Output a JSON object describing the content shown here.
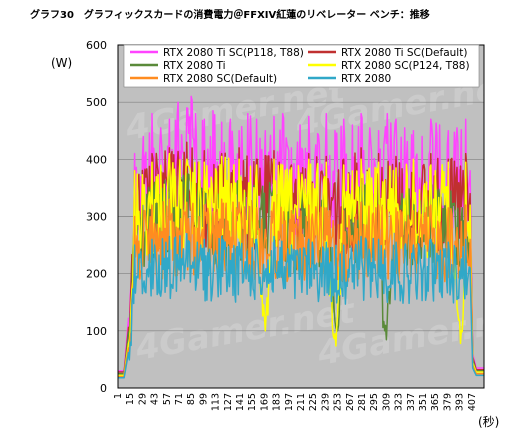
{
  "chart_data": {
    "type": "line",
    "title": "グラフ30　グラフィックスカードの消費電力＠FFXIV紅蓮のリベレーター ベンチ：推移",
    "ylabel": "(W)",
    "xlabel": "(秒)",
    "ylim": [
      0,
      600
    ],
    "yticks": [
      0,
      100,
      200,
      300,
      400,
      500,
      600
    ],
    "xlim": [
      1,
      421
    ],
    "xticks": [
      1,
      15,
      29,
      43,
      57,
      71,
      85,
      99,
      113,
      127,
      141,
      155,
      169,
      183,
      197,
      211,
      225,
      239,
      253,
      267,
      281,
      295,
      309,
      323,
      337,
      351,
      365,
      379,
      393,
      407
    ],
    "grid": true,
    "plot_background": "#c0c0c0",
    "legend_position": "top",
    "watermark": "4Gamer.net",
    "series": [
      {
        "name": "RTX 2080 Ti SC(P118, T88)",
        "color": "#ff44ff",
        "x": [
          1,
          8,
          10,
          15,
          20,
          30,
          40,
          50,
          60,
          70,
          80,
          85,
          90,
          100,
          110,
          120,
          130,
          140,
          150,
          160,
          170,
          180,
          190,
          200,
          210,
          220,
          230,
          240,
          250,
          260,
          270,
          280,
          290,
          300,
          310,
          320,
          330,
          340,
          350,
          360,
          370,
          380,
          390,
          400,
          405,
          408,
          412,
          421
        ],
        "y": [
          30,
          30,
          65,
          160,
          410,
          440,
          480,
          455,
          470,
          500,
          490,
          510,
          480,
          470,
          485,
          465,
          470,
          450,
          480,
          470,
          450,
          475,
          480,
          420,
          460,
          475,
          445,
          480,
          450,
          470,
          460,
          480,
          455,
          450,
          480,
          470,
          455,
          450,
          440,
          470,
          460,
          450,
          455,
          470,
          380,
          60,
          35,
          35
        ]
      },
      {
        "name": "RTX 2080 Ti SC(Default)",
        "color": "#c03030",
        "x": [
          1,
          8,
          10,
          15,
          20,
          40,
          60,
          80,
          100,
          120,
          140,
          160,
          180,
          200,
          220,
          240,
          260,
          280,
          300,
          320,
          340,
          360,
          380,
          400,
          405,
          408,
          412,
          421
        ],
        "y": [
          28,
          28,
          55,
          140,
          380,
          410,
          420,
          430,
          415,
          410,
          420,
          400,
          415,
          390,
          410,
          405,
          400,
          420,
          410,
          405,
          395,
          410,
          400,
          410,
          340,
          55,
          32,
          32
        ]
      },
      {
        "name": "RTX 2080 Ti",
        "color": "#5a8a3a",
        "x": [
          1,
          8,
          10,
          15,
          20,
          40,
          60,
          80,
          100,
          120,
          140,
          160,
          180,
          200,
          220,
          240,
          253,
          260,
          280,
          300,
          307,
          320,
          340,
          360,
          380,
          400,
          405,
          408,
          412,
          421
        ],
        "y": [
          25,
          25,
          50,
          130,
          340,
          360,
          370,
          375,
          365,
          360,
          370,
          355,
          365,
          345,
          360,
          355,
          100,
          350,
          360,
          355,
          100,
          360,
          350,
          360,
          355,
          360,
          300,
          50,
          30,
          30
        ]
      },
      {
        "name": "RTX 2080 SC(P124, T88)",
        "color": "#ffff00",
        "x": [
          1,
          8,
          10,
          15,
          20,
          40,
          60,
          80,
          100,
          120,
          140,
          160,
          170,
          180,
          200,
          220,
          240,
          250,
          260,
          280,
          300,
          320,
          340,
          360,
          380,
          395,
          400,
          405,
          408,
          412,
          421
        ],
        "y": [
          22,
          22,
          45,
          100,
          380,
          395,
          410,
          400,
          395,
          405,
          400,
          390,
          100,
          400,
          385,
          400,
          395,
          95,
          390,
          400,
          395,
          385,
          400,
          390,
          395,
          100,
          395,
          320,
          45,
          28,
          28
        ]
      },
      {
        "name": "RTX 2080 SC(Default)",
        "color": "#ff8c20",
        "x": [
          1,
          8,
          10,
          15,
          20,
          40,
          60,
          80,
          100,
          120,
          140,
          160,
          180,
          200,
          220,
          240,
          260,
          280,
          300,
          320,
          340,
          360,
          380,
          400,
          405,
          408,
          412,
          421
        ],
        "y": [
          20,
          20,
          40,
          90,
          300,
          320,
          330,
          325,
          320,
          330,
          325,
          315,
          325,
          310,
          320,
          315,
          310,
          325,
          320,
          315,
          310,
          320,
          315,
          320,
          260,
          40,
          25,
          25
        ]
      },
      {
        "name": "RTX 2080",
        "color": "#30a8c8",
        "x": [
          1,
          8,
          10,
          15,
          20,
          40,
          60,
          80,
          100,
          120,
          140,
          160,
          180,
          200,
          220,
          240,
          260,
          280,
          300,
          320,
          340,
          360,
          380,
          400,
          405,
          408,
          412,
          421
        ],
        "y": [
          18,
          18,
          35,
          80,
          250,
          260,
          265,
          270,
          260,
          265,
          255,
          260,
          265,
          250,
          260,
          255,
          250,
          265,
          260,
          255,
          250,
          260,
          255,
          260,
          210,
          35,
          22,
          22
        ]
      }
    ]
  }
}
